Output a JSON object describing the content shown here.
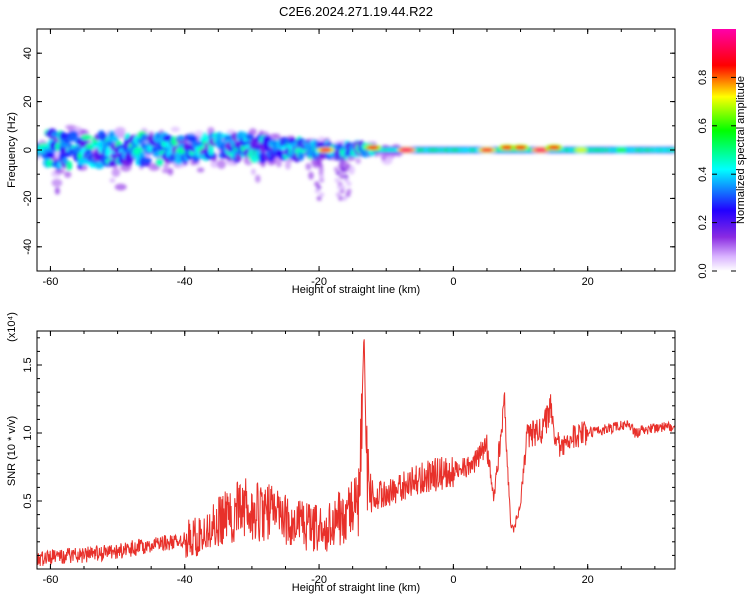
{
  "title": "C2E6.2024.271.19.44.R22",
  "chart_data": [
    {
      "type": "heatmap",
      "xlabel": "Height of straight line (km)",
      "ylabel": "Frequency (Hz)",
      "xlim": [
        -62,
        33
      ],
      "ylim": [
        -50,
        50
      ],
      "xticks": [
        -60,
        -40,
        -20,
        0,
        20
      ],
      "yticks": [
        -40,
        -20,
        0,
        20,
        40
      ],
      "colorbar": {
        "label": "Normalized spectral amplitude",
        "range": [
          0,
          1
        ],
        "ticks": [
          "0.0",
          "0.2",
          "0.4",
          "0.6",
          "0.8"
        ],
        "tick_values": [
          0,
          0.2,
          0.4,
          0.6,
          0.8
        ],
        "colors": [
          "#ffffff",
          "#d9b3ff",
          "#8a2be2",
          "#2200ff",
          "#00ffff",
          "#00ff00",
          "#ffff00",
          "#ff0000",
          "#ff00aa"
        ]
      },
      "band": [
        {
          "x": -61,
          "center": 0,
          "halfwidth": 8
        },
        {
          "x": -50,
          "center": 0,
          "halfwidth": 7
        },
        {
          "x": -40,
          "center": 1,
          "halfwidth": 6
        },
        {
          "x": -30,
          "center": 1,
          "halfwidth": 5
        },
        {
          "x": -20,
          "center": 0,
          "halfwidth": 3
        },
        {
          "x": -12,
          "center": 0,
          "halfwidth": 2
        },
        {
          "x": 0,
          "center": 0,
          "halfwidth": 2
        },
        {
          "x": 33,
          "center": 0,
          "halfwidth": 2
        }
      ],
      "peaks": [
        {
          "x": -19,
          "y": 0,
          "amp": 0.9
        },
        {
          "x": -12,
          "y": 1,
          "amp": 0.85
        },
        {
          "x": -7,
          "y": 0,
          "amp": 0.95
        },
        {
          "x": 5,
          "y": 0,
          "amp": 0.9
        },
        {
          "x": 8,
          "y": 1,
          "amp": 0.85
        },
        {
          "x": 10,
          "y": 1,
          "amp": 0.85
        },
        {
          "x": 13,
          "y": 0,
          "amp": 0.95
        },
        {
          "x": 15,
          "y": 1,
          "amp": 0.85
        },
        {
          "x": 19,
          "y": 0,
          "amp": 0.7
        },
        {
          "x": 25,
          "y": 0,
          "amp": 0.6
        }
      ]
    },
    {
      "type": "line",
      "xlabel": "Height of straight line (km)",
      "ylabel": "SNR (10 * v/v)",
      "yscale_label": "(x10⁴)",
      "xlim": [
        -62,
        33
      ],
      "ylim": [
        0,
        1.75
      ],
      "xticks": [
        -60,
        -40,
        -20,
        0,
        20
      ],
      "yticks": [
        "0.5",
        "1.0",
        "1.5"
      ],
      "ytick_values": [
        0.5,
        1.0,
        1.5
      ],
      "series": [
        {
          "color": "#e8302a",
          "x": [
            -62,
            -58,
            -54,
            -50,
            -46,
            -42,
            -38,
            -35,
            -33,
            -31,
            -29,
            -27,
            -25,
            -23,
            -21,
            -19,
            -18,
            -16,
            -15,
            -14,
            -13.3,
            -13,
            -12.5,
            -12,
            -11,
            -10,
            -8,
            -6,
            -4,
            -2,
            0,
            1,
            2,
            3,
            4,
            5,
            6,
            7,
            7.7,
            8,
            8.5,
            9,
            10,
            11,
            12,
            13,
            14,
            14.5,
            15,
            16,
            17,
            18,
            20,
            22,
            24,
            25,
            26,
            27,
            28,
            30,
            33
          ],
          "y": [
            0.08,
            0.09,
            0.11,
            0.13,
            0.17,
            0.2,
            0.25,
            0.35,
            0.4,
            0.45,
            0.42,
            0.4,
            0.36,
            0.33,
            0.3,
            0.3,
            0.35,
            0.4,
            0.45,
            0.5,
            1.75,
            0.9,
            0.5,
            0.5,
            0.55,
            0.55,
            0.6,
            0.65,
            0.68,
            0.7,
            0.72,
            0.74,
            0.75,
            0.77,
            0.85,
            0.9,
            0.5,
            0.95,
            1.22,
            0.8,
            0.35,
            0.28,
            0.5,
            0.98,
            1.0,
            1.02,
            1.1,
            1.18,
            1.0,
            0.9,
            0.95,
            0.98,
            1.0,
            1.02,
            1.04,
            1.05,
            1.08,
            1.0,
            1.02,
            1.03,
            1.05
          ]
        }
      ]
    }
  ]
}
